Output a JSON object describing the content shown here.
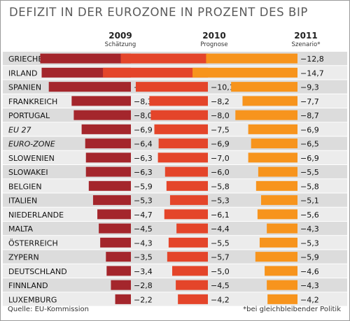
{
  "chart_data": {
    "type": "bar",
    "title": "DEFIZIT IN DER EUROZONE IN PROZENT DES BIP",
    "categories": [
      "GRIECHENLAND",
      "IRLAND",
      "SPANIEN",
      "FRANKREICH",
      "PORTUGAL",
      "EU 27",
      "EURO-ZONE",
      "SLOWENIEN",
      "SLOWAKEI",
      "BELGIEN",
      "ITALIEN",
      "NIEDERLANDE",
      "MALTA",
      "ÖSTERREICH",
      "ZYPERN",
      "DEUTSCHLAND",
      "FINNLAND",
      "LUXEMBURG"
    ],
    "italic_categories": [
      "EU 27",
      "EURO-ZONE"
    ],
    "series": [
      {
        "name": "2009",
        "subtitle": "Schätzung",
        "color": "#a4262c",
        "values": [
          -12.7,
          -12.5,
          -11.5,
          -8.3,
          -8.0,
          -6.9,
          -6.4,
          -6.3,
          -6.3,
          -5.9,
          -5.3,
          -4.7,
          -4.5,
          -4.3,
          -3.5,
          -3.4,
          -2.8,
          -2.2
        ]
      },
      {
        "name": "2010",
        "subtitle": "Prognose",
        "color": "#e4452a",
        "values": [
          -12.2,
          -14.7,
          -10.1,
          -8.2,
          -8.0,
          -7.5,
          -6.9,
          -7.0,
          -6.0,
          -5.8,
          -5.3,
          -6.1,
          -4.4,
          -5.5,
          -5.7,
          -5.0,
          -4.5,
          -4.2
        ]
      },
      {
        "name": "2011",
        "subtitle": "Szenario*",
        "color": "#f7941d",
        "values": [
          -12.8,
          -14.7,
          -9.3,
          -7.7,
          -8.7,
          -6.9,
          -6.5,
          -6.9,
          -5.5,
          -5.8,
          -5.1,
          -5.6,
          -4.3,
          -5.3,
          -5.9,
          -4.6,
          -4.3,
          -4.2
        ]
      }
    ],
    "value_format": "comma-decimal"
  },
  "source": "Quelle: EU-Kommission",
  "footnote": "*bei gleichbleibender Politik"
}
